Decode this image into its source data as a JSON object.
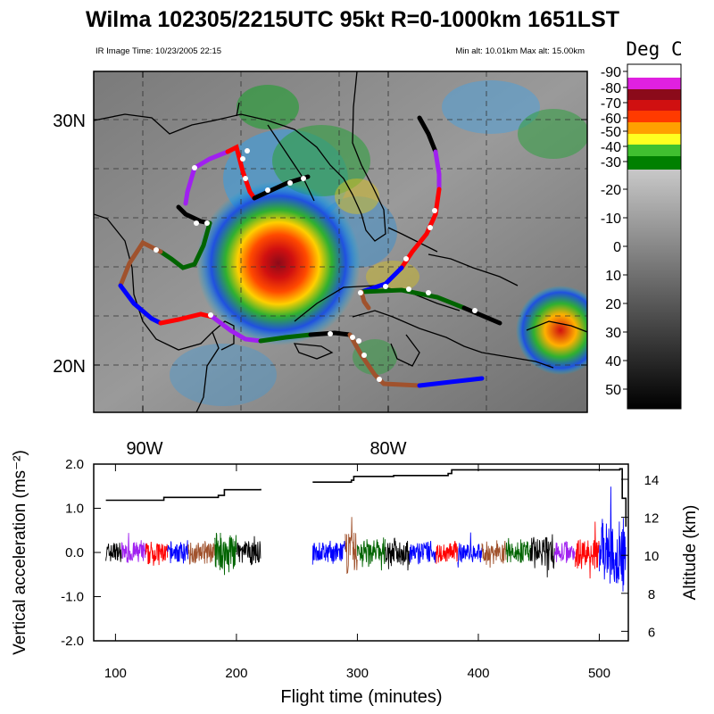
{
  "title": "Wilma 102305/2215UTC 95kt  R=0-1000km 1651LST",
  "image_time": "IR Image Time: 10/23/2005 22:15",
  "alt_range": "Min alt: 10.01km  Max alt: 15.00km",
  "colorbar": {
    "title": "Deg C",
    "labels": [
      "-90",
      "-80",
      "-70",
      "-60",
      "-50",
      "-40",
      "-30",
      "-20",
      "-10",
      "0",
      "10",
      "20",
      "30",
      "40",
      "50"
    ],
    "colors": [
      "#ffffff",
      "#e020e0",
      "#8b0a1a",
      "#d01010",
      "#ff3a00",
      "#ffa000",
      "#ffff20",
      "#40c030",
      "#008000",
      "#2020e0",
      "#00c0ff",
      "#a8a8a8"
    ]
  },
  "map": {
    "lat_labels": [
      "30N",
      "20N"
    ],
    "lon_labels": [
      "90W",
      "80W"
    ]
  },
  "chart_data": {
    "type": "line",
    "xlabel": "Flight time (minutes)",
    "ylabel": "Vertical acceleration (ms⁻²)",
    "y2label": "Altitude (km)",
    "xlim": [
      82,
      524
    ],
    "ylim": [
      -2.0,
      2.0
    ],
    "y2lim": [
      5.5,
      14.8
    ],
    "xticks": [
      "100",
      "200",
      "300",
      "400",
      "500"
    ],
    "yticks": [
      "2.0",
      "1.0",
      "0.0",
      "-1.0",
      "-2.0"
    ],
    "y2ticks": [
      "14",
      "12",
      "10",
      "8",
      "6"
    ],
    "altitude_km": [
      [
        92,
        12.9
      ],
      [
        140,
        13.05
      ],
      [
        185,
        13.15
      ],
      [
        190,
        13.45
      ],
      [
        220,
        13.5
      ],
      [
        263,
        13.85
      ],
      [
        295,
        13.95
      ],
      [
        297,
        14.15
      ],
      [
        330,
        14.2
      ],
      [
        375,
        14.3
      ],
      [
        378,
        14.5
      ],
      [
        440,
        14.5
      ],
      [
        517,
        14.55
      ],
      [
        519,
        13.0
      ],
      [
        522,
        11.5
      ]
    ],
    "acceleration_segments": [
      {
        "x": [
          92,
          105
        ],
        "color": "#000000",
        "amp": 0.28
      },
      {
        "x": [
          105,
          125
        ],
        "color": "#a020f0",
        "amp": 0.3
      },
      {
        "x": [
          125,
          143
        ],
        "color": "#ff0000",
        "amp": 0.32
      },
      {
        "x": [
          143,
          160
        ],
        "color": "#0000ff",
        "amp": 0.3
      },
      {
        "x": [
          160,
          182
        ],
        "color": "#a0522d",
        "amp": 0.3
      },
      {
        "x": [
          182,
          200
        ],
        "color": "#006400",
        "amp": 0.55
      },
      {
        "x": [
          200,
          220
        ],
        "color": "#000000",
        "amp": 0.3
      },
      {
        "x": [
          263,
          290
        ],
        "color": "#0000ff",
        "amp": 0.3
      },
      {
        "x": [
          290,
          300
        ],
        "color": "#a0522d",
        "amp": 0.6
      },
      {
        "x": [
          300,
          323
        ],
        "color": "#006400",
        "amp": 0.4
      },
      {
        "x": [
          323,
          343
        ],
        "color": "#000000",
        "amp": 0.35
      },
      {
        "x": [
          343,
          365
        ],
        "color": "#0000ff",
        "amp": 0.3
      },
      {
        "x": [
          365,
          383
        ],
        "color": "#ff0000",
        "amp": 0.3
      },
      {
        "x": [
          383,
          403
        ],
        "color": "#0000ff",
        "amp": 0.28
      },
      {
        "x": [
          403,
          423
        ],
        "color": "#a0522d",
        "amp": 0.3
      },
      {
        "x": [
          423,
          443
        ],
        "color": "#006400",
        "amp": 0.3
      },
      {
        "x": [
          443,
          463
        ],
        "color": "#000000",
        "amp": 0.45
      },
      {
        "x": [
          463,
          480
        ],
        "color": "#a020f0",
        "amp": 0.3
      },
      {
        "x": [
          480,
          500
        ],
        "color": "#ff0000",
        "amp": 0.45
      },
      {
        "x": [
          500,
          522
        ],
        "color": "#0000ff",
        "amp": 0.9
      }
    ]
  }
}
